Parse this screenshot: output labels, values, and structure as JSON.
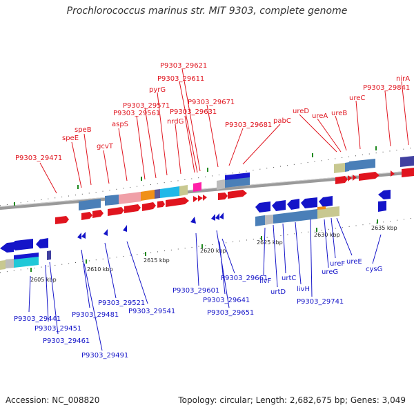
{
  "header": {
    "title": "Prochlorococcus marinus str. MIT 9303, complete genome"
  },
  "footer": {
    "accession": "Accession: NC_008820",
    "summary": "Topology: circular; Length: 2,682,675 bp; Genes: 3,049"
  },
  "scale_labels": [
    "2605 kbp",
    "2610 kbp",
    "2615 kbp",
    "2620 kbp",
    "2625 kbp",
    "2630 kbp",
    "2635 kbp"
  ],
  "top_labels": [
    "P9303_29471",
    "speE",
    "speB",
    "gcvT",
    "aspS",
    "P9303_29561",
    "P9303_29571",
    "pyrG",
    "nrdG",
    "P9303_29631",
    "P9303_29611",
    "P9303_29621",
    "P9303_29671",
    "P9303_29681",
    "pabC",
    "ureD",
    "ureA",
    "ureB",
    "ureC",
    "P9303_29841",
    "nirA"
  ],
  "bottom_labels": [
    "2605 kbp",
    "P9303_29441",
    "P9303_29451",
    "P9303_29461",
    "P9303_29481",
    "P9303_29491",
    "P9303_29521",
    "P9303_29541",
    "P9303_29601",
    "P9303_29641",
    "P9303_29651",
    "P9303_29661",
    "livF",
    "urtD",
    "urtC",
    "livH",
    "P9303_29741",
    "ureG",
    "ureF",
    "ureE",
    "cysG"
  ],
  "colors": {
    "forward_gene": "#e0141e",
    "reverse_gene": "#1414c8",
    "axis": "#888888"
  }
}
